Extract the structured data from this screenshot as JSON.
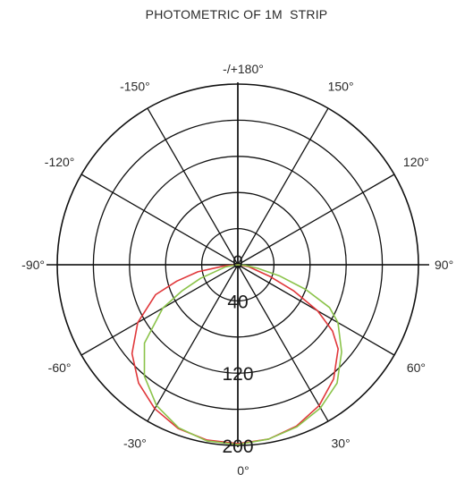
{
  "chart_data": {
    "type": "polar-line",
    "title": "PHOTOMETRIC OF 1M  STRIP",
    "angular_ticks": [
      {
        "deg": 0,
        "label": "0°"
      },
      {
        "deg": 30,
        "label": "30°"
      },
      {
        "deg": 60,
        "label": "60°"
      },
      {
        "deg": 90,
        "label": "90°"
      },
      {
        "deg": 120,
        "label": "120°"
      },
      {
        "deg": 150,
        "label": "150°"
      },
      {
        "deg": 180,
        "label": "-/+180°"
      },
      {
        "deg": -150,
        "label": "-150°"
      },
      {
        "deg": -120,
        "label": "-120°"
      },
      {
        "deg": -90,
        "label": "-90°"
      },
      {
        "deg": -60,
        "label": "-60°"
      },
      {
        "deg": -30,
        "label": "-30°"
      }
    ],
    "radial_ticks": [
      {
        "value": 0,
        "label": "0"
      },
      {
        "value": 40,
        "label": "40"
      },
      {
        "value": 120,
        "label": "120"
      },
      {
        "value": 200,
        "label": "200"
      }
    ],
    "radial_range": [
      0,
      200
    ],
    "rings": 5,
    "series": [
      {
        "color": "#e0373a",
        "points": [
          {
            "angle": -90,
            "value": 0
          },
          {
            "angle": -85,
            "value": 15
          },
          {
            "angle": -80,
            "value": 45
          },
          {
            "angle": -75,
            "value": 70
          },
          {
            "angle": -70,
            "value": 97
          },
          {
            "angle": -60,
            "value": 128
          },
          {
            "angle": -50,
            "value": 153
          },
          {
            "angle": -40,
            "value": 171
          },
          {
            "angle": -30,
            "value": 184
          },
          {
            "angle": -20,
            "value": 193
          },
          {
            "angle": -10,
            "value": 197
          },
          {
            "angle": 0,
            "value": 198
          },
          {
            "angle": 10,
            "value": 196
          },
          {
            "angle": 20,
            "value": 190
          },
          {
            "angle": 30,
            "value": 180
          },
          {
            "angle": 40,
            "value": 165
          },
          {
            "angle": 50,
            "value": 145
          },
          {
            "angle": 55,
            "value": 128
          },
          {
            "angle": 60,
            "value": 102
          },
          {
            "angle": 65,
            "value": 68
          },
          {
            "angle": 70,
            "value": 38
          },
          {
            "angle": 80,
            "value": 12
          },
          {
            "angle": 90,
            "value": 0
          }
        ]
      },
      {
        "color": "#8bc34a",
        "points": [
          {
            "angle": -90,
            "value": 0
          },
          {
            "angle": -80,
            "value": 14
          },
          {
            "angle": -70,
            "value": 44
          },
          {
            "angle": -65,
            "value": 68
          },
          {
            "angle": -60,
            "value": 96
          },
          {
            "angle": -50,
            "value": 135
          },
          {
            "angle": -40,
            "value": 161
          },
          {
            "angle": -30,
            "value": 180
          },
          {
            "angle": -20,
            "value": 192
          },
          {
            "angle": -10,
            "value": 198
          },
          {
            "angle": 0,
            "value": 199
          },
          {
            "angle": 10,
            "value": 196
          },
          {
            "angle": 20,
            "value": 191
          },
          {
            "angle": 30,
            "value": 183
          },
          {
            "angle": 40,
            "value": 171
          },
          {
            "angle": 50,
            "value": 150
          },
          {
            "angle": 60,
            "value": 128
          },
          {
            "angle": 65,
            "value": 112
          },
          {
            "angle": 70,
            "value": 80
          },
          {
            "angle": 75,
            "value": 48
          },
          {
            "angle": 80,
            "value": 22
          },
          {
            "angle": 85,
            "value": 8
          },
          {
            "angle": 90,
            "value": 0
          }
        ]
      }
    ]
  }
}
